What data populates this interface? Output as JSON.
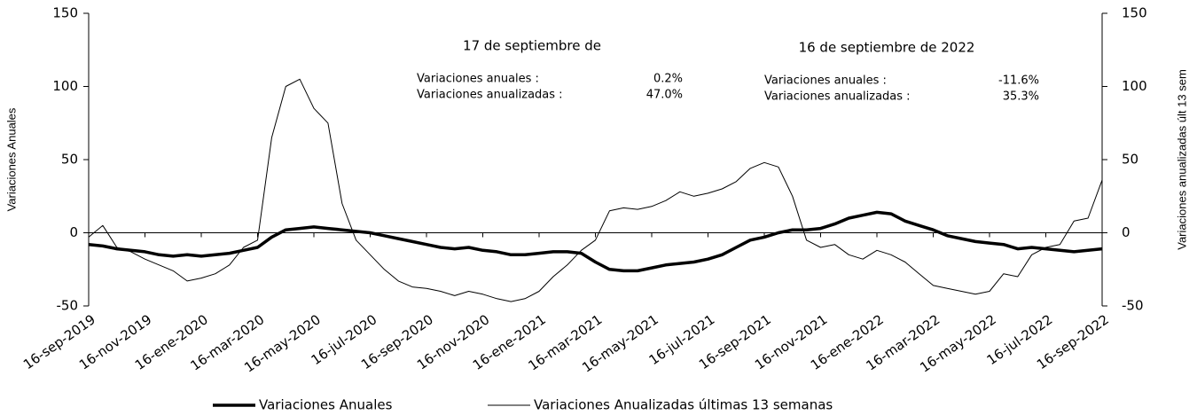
{
  "chart_data": {
    "type": "line",
    "categories": [
      "16-sep-2019",
      null,
      null,
      null,
      "16-nov-2019",
      null,
      null,
      null,
      "16-ene-2020",
      null,
      null,
      null,
      "16-mar-2020",
      null,
      null,
      null,
      "16-may-2020",
      null,
      null,
      null,
      "16-jul-2020",
      null,
      null,
      null,
      "16-sep-2020",
      null,
      null,
      null,
      "16-nov-2020",
      null,
      null,
      null,
      "16-ene-2021",
      null,
      null,
      null,
      "16-mar-2021",
      null,
      null,
      null,
      "16-may-2021",
      null,
      null,
      null,
      "16-jul-2021",
      null,
      null,
      null,
      "16-sep-2021",
      null,
      null,
      null,
      "16-nov-2021",
      null,
      null,
      null,
      "16-ene-2022",
      null,
      null,
      null,
      "16-mar-2022",
      null,
      null,
      null,
      "16-may-2022",
      null,
      null,
      null,
      "16-jul-2022",
      null,
      null,
      null,
      "16-sep-2022"
    ],
    "series": [
      {
        "name": "Variaciones Anuales",
        "color": "#000000",
        "width": 3.5,
        "axis": "y",
        "values": [
          -8,
          -9,
          -11,
          -12,
          -13,
          -15,
          -16,
          -15,
          -16,
          -15,
          -14,
          -12,
          -10,
          -3,
          2,
          3,
          4,
          3,
          2,
          1,
          0,
          -2,
          -4,
          -6,
          -8,
          -10,
          -11,
          -10,
          -12,
          -13,
          -15,
          -15,
          -14,
          -13,
          -13,
          -14,
          -20,
          -25,
          -26,
          -26,
          -24,
          -22,
          -21,
          -20,
          -18,
          -15,
          -10,
          -5,
          -3,
          0,
          2,
          2,
          3,
          6,
          10,
          12,
          14,
          13,
          8,
          5,
          2,
          -2,
          -4,
          -6,
          -7,
          -8,
          -11,
          -10,
          -11,
          -12,
          -13,
          -12,
          -11
        ]
      },
      {
        "name": "Variaciones Anualizadas últimas 13 semanas",
        "color": "#000000",
        "width": 1,
        "axis": "y2",
        "values": [
          -3,
          5,
          -10,
          -13,
          -18,
          -22,
          -26,
          -33,
          -31,
          -28,
          -22,
          -10,
          -5,
          65,
          100,
          105,
          85,
          75,
          20,
          -5,
          -15,
          -25,
          -33,
          -37,
          -38,
          -40,
          -43,
          -40,
          -42,
          -45,
          -47,
          -45,
          -40,
          -30,
          -22,
          -12,
          -5,
          15,
          17,
          16,
          18,
          22,
          28,
          25,
          27,
          30,
          35,
          44,
          48,
          45,
          25,
          -5,
          -10,
          -8,
          -15,
          -18,
          -12,
          -15,
          -20,
          -28,
          -36,
          -38,
          -40,
          -42,
          -40,
          -28,
          -30,
          -15,
          -10,
          -8,
          8,
          10,
          36
        ]
      }
    ],
    "ylabel": "Variaciones Anuales",
    "y2label": "Variaciones anualizadas últ 13 sem",
    "ylim": [
      -50,
      150
    ],
    "yticks": [
      -50,
      0,
      50,
      100,
      150
    ],
    "y2lim": [
      -50,
      150
    ],
    "y2ticks": [
      -50,
      0,
      50,
      100,
      150
    ],
    "annotations": [
      {
        "title": "17 de septiembre de",
        "rows": [
          {
            "label": "Variaciones anuales :",
            "value": "0.2%"
          },
          {
            "label": "Variaciones anualizadas :",
            "value": "47.0%"
          }
        ]
      },
      {
        "title": "16 de septiembre de 2022",
        "rows": [
          {
            "label": "Variaciones anuales :",
            "value": "-11.6%"
          },
          {
            "label": "Variaciones anualizadas :",
            "value": "35.3%"
          }
        ]
      }
    ],
    "legend": "bottom"
  }
}
